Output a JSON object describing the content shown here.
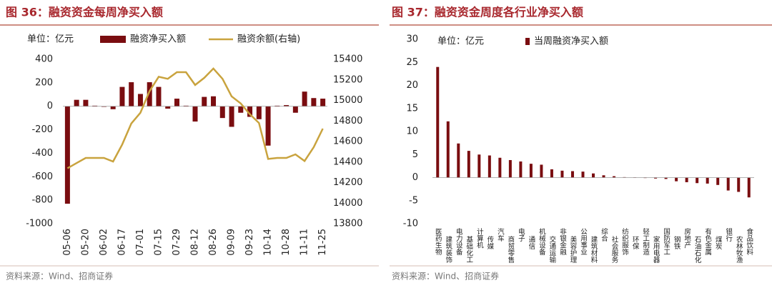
{
  "chart_data": [
    {
      "type": "bar_line",
      "title": "图 36：融资资金每周净买入额",
      "annotation": "单位：亿元",
      "source": "资料来源：Wind、招商证券",
      "categories": [
        "05-06",
        null,
        "05-20",
        null,
        "06-02",
        null,
        "06-17",
        null,
        "07-01",
        null,
        "07-15",
        null,
        "07-29",
        null,
        "08-12",
        null,
        "08-26",
        null,
        "09-09",
        null,
        "09-23",
        null,
        "10-14",
        null,
        "10-28",
        null,
        "11-11",
        null,
        "11-25"
      ],
      "series": [
        {
          "name": "融资净买入额",
          "color": "#7a0d10",
          "axis": "y",
          "values": [
            -830,
            55,
            55,
            5,
            -5,
            -25,
            165,
            205,
            105,
            205,
            165,
            -20,
            65,
            5,
            -130,
            80,
            85,
            -100,
            -175,
            -55,
            -90,
            -110,
            -335,
            5,
            10,
            -55,
            125,
            70,
            65
          ]
        },
        {
          "name": "融资余额(右轴)",
          "color": "#c9a33e",
          "axis": "y2",
          "values": [
            14340,
            14390,
            14440,
            14440,
            14440,
            14405,
            14570,
            14775,
            14880,
            15090,
            15230,
            15210,
            15275,
            15275,
            15150,
            15220,
            15310,
            15210,
            15040,
            14970,
            14865,
            14780,
            14430,
            14440,
            14440,
            14475,
            14410,
            14545,
            14725
          ]
        }
      ],
      "ylim": [
        -1000,
        400
      ],
      "yticks": [
        -1000,
        -800,
        -600,
        -400,
        -200,
        0,
        200,
        400
      ],
      "y2lim": [
        13800,
        15400
      ],
      "y2ticks": [
        13800,
        14000,
        14200,
        14400,
        14600,
        14800,
        15000,
        15200,
        15400
      ]
    },
    {
      "type": "bar",
      "title": "图 37：融资资金周度各行业净买入额",
      "annotation": "单位：亿元",
      "source": "资料来源：Wind、招商证券",
      "categories": [
        "医药生物",
        "建筑装饰",
        "电力设备",
        "基础化工",
        "计算机",
        "传媒",
        "汽车",
        "商贸零售",
        "电子",
        "通信",
        "机械设备",
        "交通运输",
        "非银金融",
        "美容护理",
        "公用事业",
        "建筑材料",
        "综合",
        "社会服务",
        "纺织服饰",
        "环保",
        "轻工制造",
        "家用电器",
        "国防军工",
        "钢铁",
        "房地产",
        "石油石化",
        "有色金属",
        "煤炭",
        "银行",
        "农林牧渔",
        "食品饮料"
      ],
      "series": [
        {
          "name": "当周融资净买入额",
          "color": "#7a0d10",
          "values": [
            24,
            12.2,
            7.4,
            5.8,
            5.0,
            4.8,
            4.3,
            3.8,
            3.5,
            3.0,
            2.8,
            1.8,
            1.5,
            1.4,
            1.3,
            0.9,
            0.5,
            0.3,
            0.1,
            0.05,
            -0.1,
            -0.2,
            -0.3,
            -0.8,
            -1.0,
            -1.2,
            -1.3,
            -1.6,
            -2.8,
            -3.1,
            -4.3
          ]
        }
      ],
      "ylim": [
        -10,
        30
      ],
      "yticks": [
        -10,
        -5,
        0,
        5,
        10,
        15,
        20,
        25,
        30
      ]
    }
  ]
}
